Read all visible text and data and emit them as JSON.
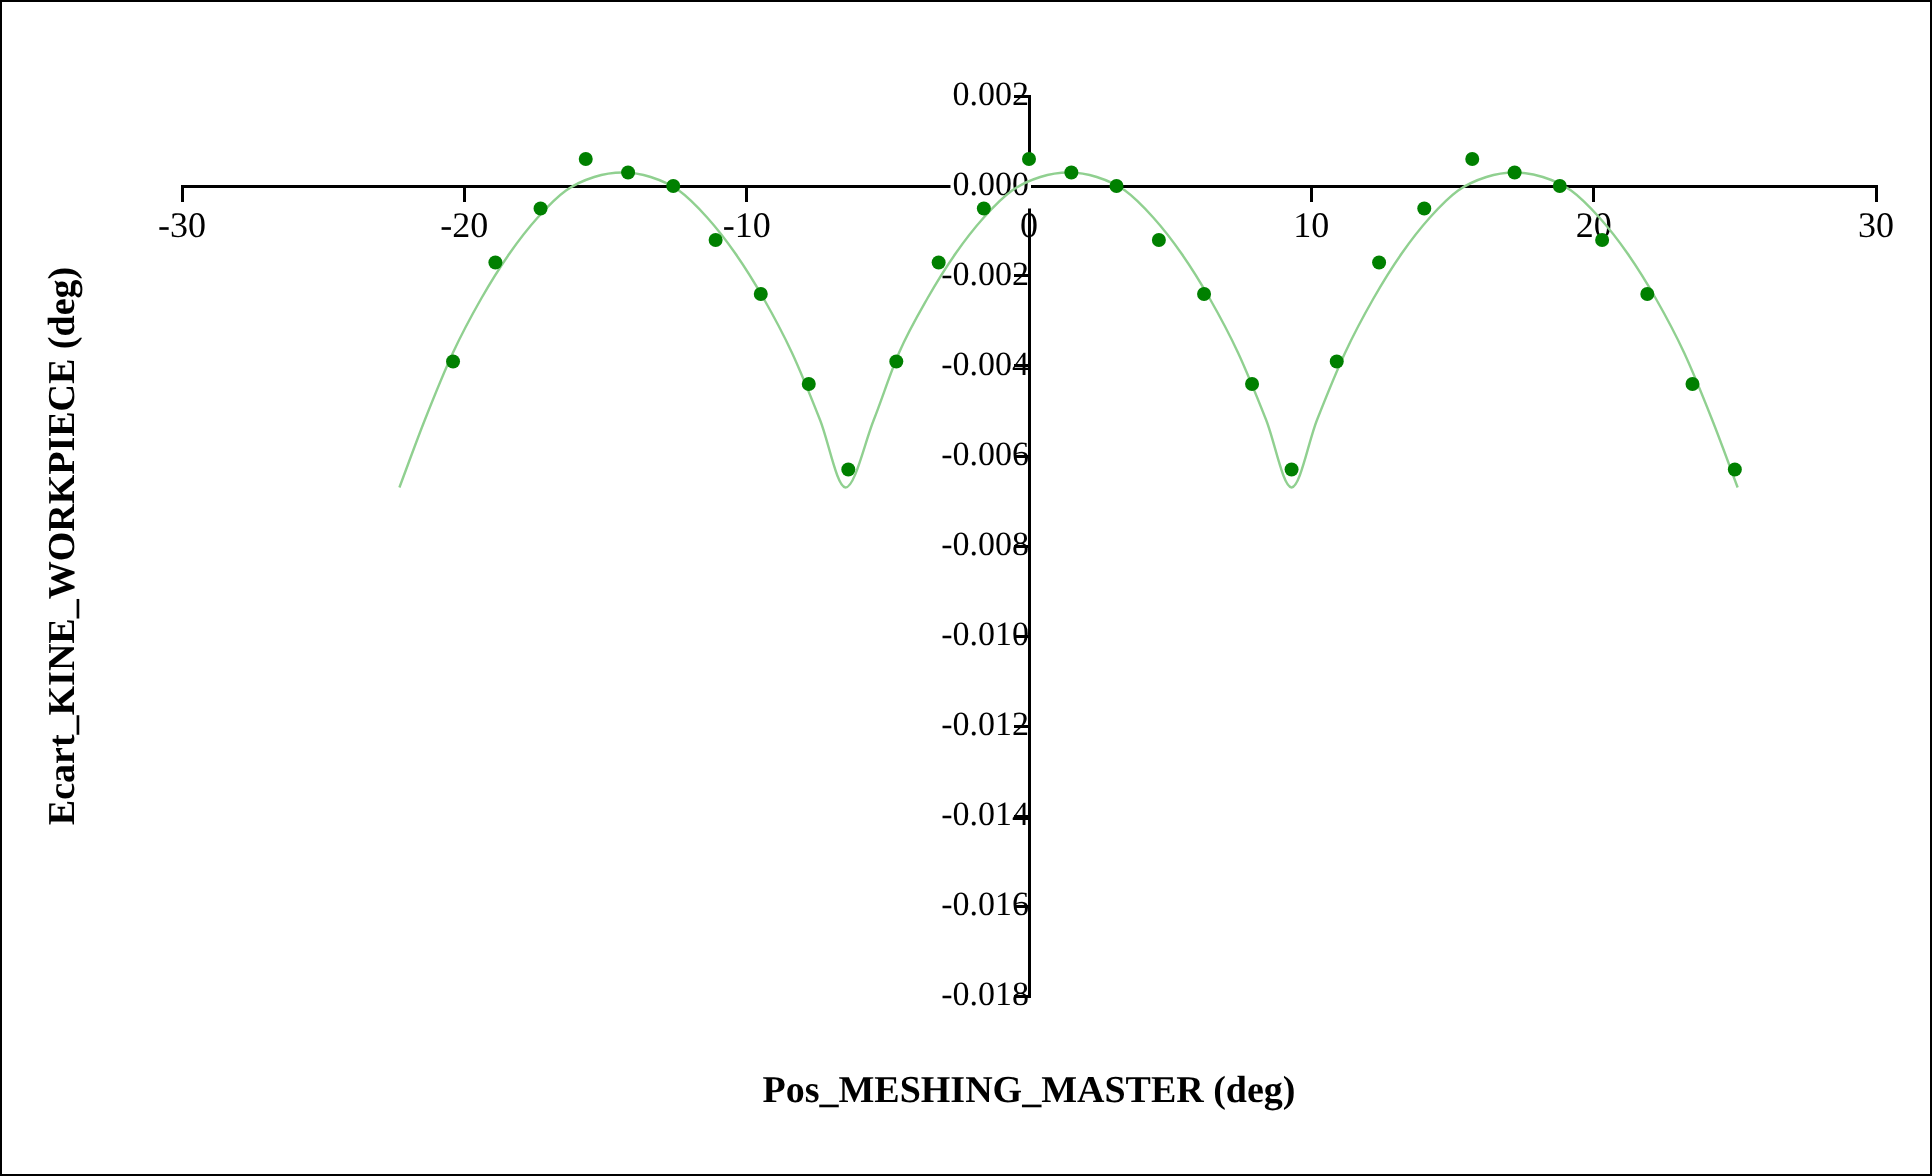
{
  "chart_data": {
    "type": "scatter",
    "xlabel": "Pos_MESHING_MASTER (deg)",
    "ylabel": "Ecart_KINE_WORKPIECE (deg)",
    "xlim": [
      -30,
      30
    ],
    "xticks": [
      -30,
      -20,
      -10,
      0,
      10,
      20,
      30
    ],
    "ylim": [
      -0.018,
      0.002
    ],
    "yticks": [
      0.002,
      {
        "value": 0,
        "label": "0.000"
      },
      -0.002,
      -0.004,
      -0.006,
      -0.008,
      {
        "value": -0.01,
        "label": "-0.010"
      },
      -0.012,
      -0.014,
      -0.016,
      -0.018
    ],
    "grid": false,
    "legend": false,
    "marker": "circle",
    "series": [
      {
        "type": "scatter",
        "color": "#008000",
        "x": [
          -20.4,
          -18.9,
          -17.3,
          -15.7,
          -14.2,
          -12.6,
          -11.1,
          -9.5,
          -7.8,
          -6.4,
          -4.7,
          -3.2,
          -1.6,
          0,
          1.5,
          3.1,
          4.6,
          6.2,
          7.9,
          9.3,
          10.9,
          12.4,
          14,
          15.7,
          17.2,
          18.8,
          20.3,
          21.9,
          23.5,
          25
        ],
        "values": [
          -0.0039,
          -0.0017,
          -0.0005,
          0.0006,
          0.0003,
          0,
          -0.0012,
          -0.0024,
          -0.0044,
          -0.0063,
          -0.0039,
          -0.0017,
          -0.0005,
          0.0006,
          0.0003,
          0,
          -0.0012,
          -0.0024,
          -0.0044,
          -0.0063,
          -0.0039,
          -0.0017,
          -0.0005,
          0.0006,
          0.0003,
          0,
          -0.0012,
          -0.0024,
          -0.0044,
          -0.0063
        ]
      },
      {
        "type": "line",
        "color": "#90d090",
        "marker": "none",
        "x": [
          -22.3,
          -21.4,
          -20.4,
          -19.4,
          -18.4,
          -17.4,
          -16.4,
          -15.4,
          -14.4,
          -13.4,
          -12.4,
          -11.4,
          -10.4,
          -9.4,
          -8.4,
          -7.4,
          -6.5,
          -5.5,
          -4.6,
          -3.6,
          -2.6,
          -1.6,
          -0.6,
          0.4,
          1.4,
          2.4,
          3.4,
          4.4,
          5.4,
          6.4,
          7.4,
          8.4,
          9.3,
          10.2,
          11.2,
          12.2,
          13.2,
          14.2,
          15.2,
          16.2,
          17.2,
          18.2,
          19.2,
          20.2,
          21.2,
          22.2,
          23.2,
          24.2,
          25.1
        ],
        "values": [
          -0.0067,
          -0.0052,
          -0.0037,
          -0.0025,
          -0.0015,
          -0.0007,
          -0.0001,
          0.0002,
          0.0003,
          0.0002,
          -0.0001,
          -0.0007,
          -0.0015,
          -0.0025,
          -0.0037,
          -0.0052,
          -0.0067,
          -0.0052,
          -0.0037,
          -0.0025,
          -0.0015,
          -0.0007,
          -0.0001,
          0.0002,
          0.0003,
          0.0002,
          -0.0001,
          -0.0007,
          -0.0015,
          -0.0025,
          -0.0037,
          -0.0052,
          -0.0067,
          -0.0052,
          -0.0037,
          -0.0025,
          -0.0015,
          -0.0007,
          -0.0001,
          0.0002,
          0.0003,
          0.0002,
          -0.0001,
          -0.0007,
          -0.0015,
          -0.0025,
          -0.0037,
          -0.0052,
          -0.0067
        ]
      }
    ]
  }
}
